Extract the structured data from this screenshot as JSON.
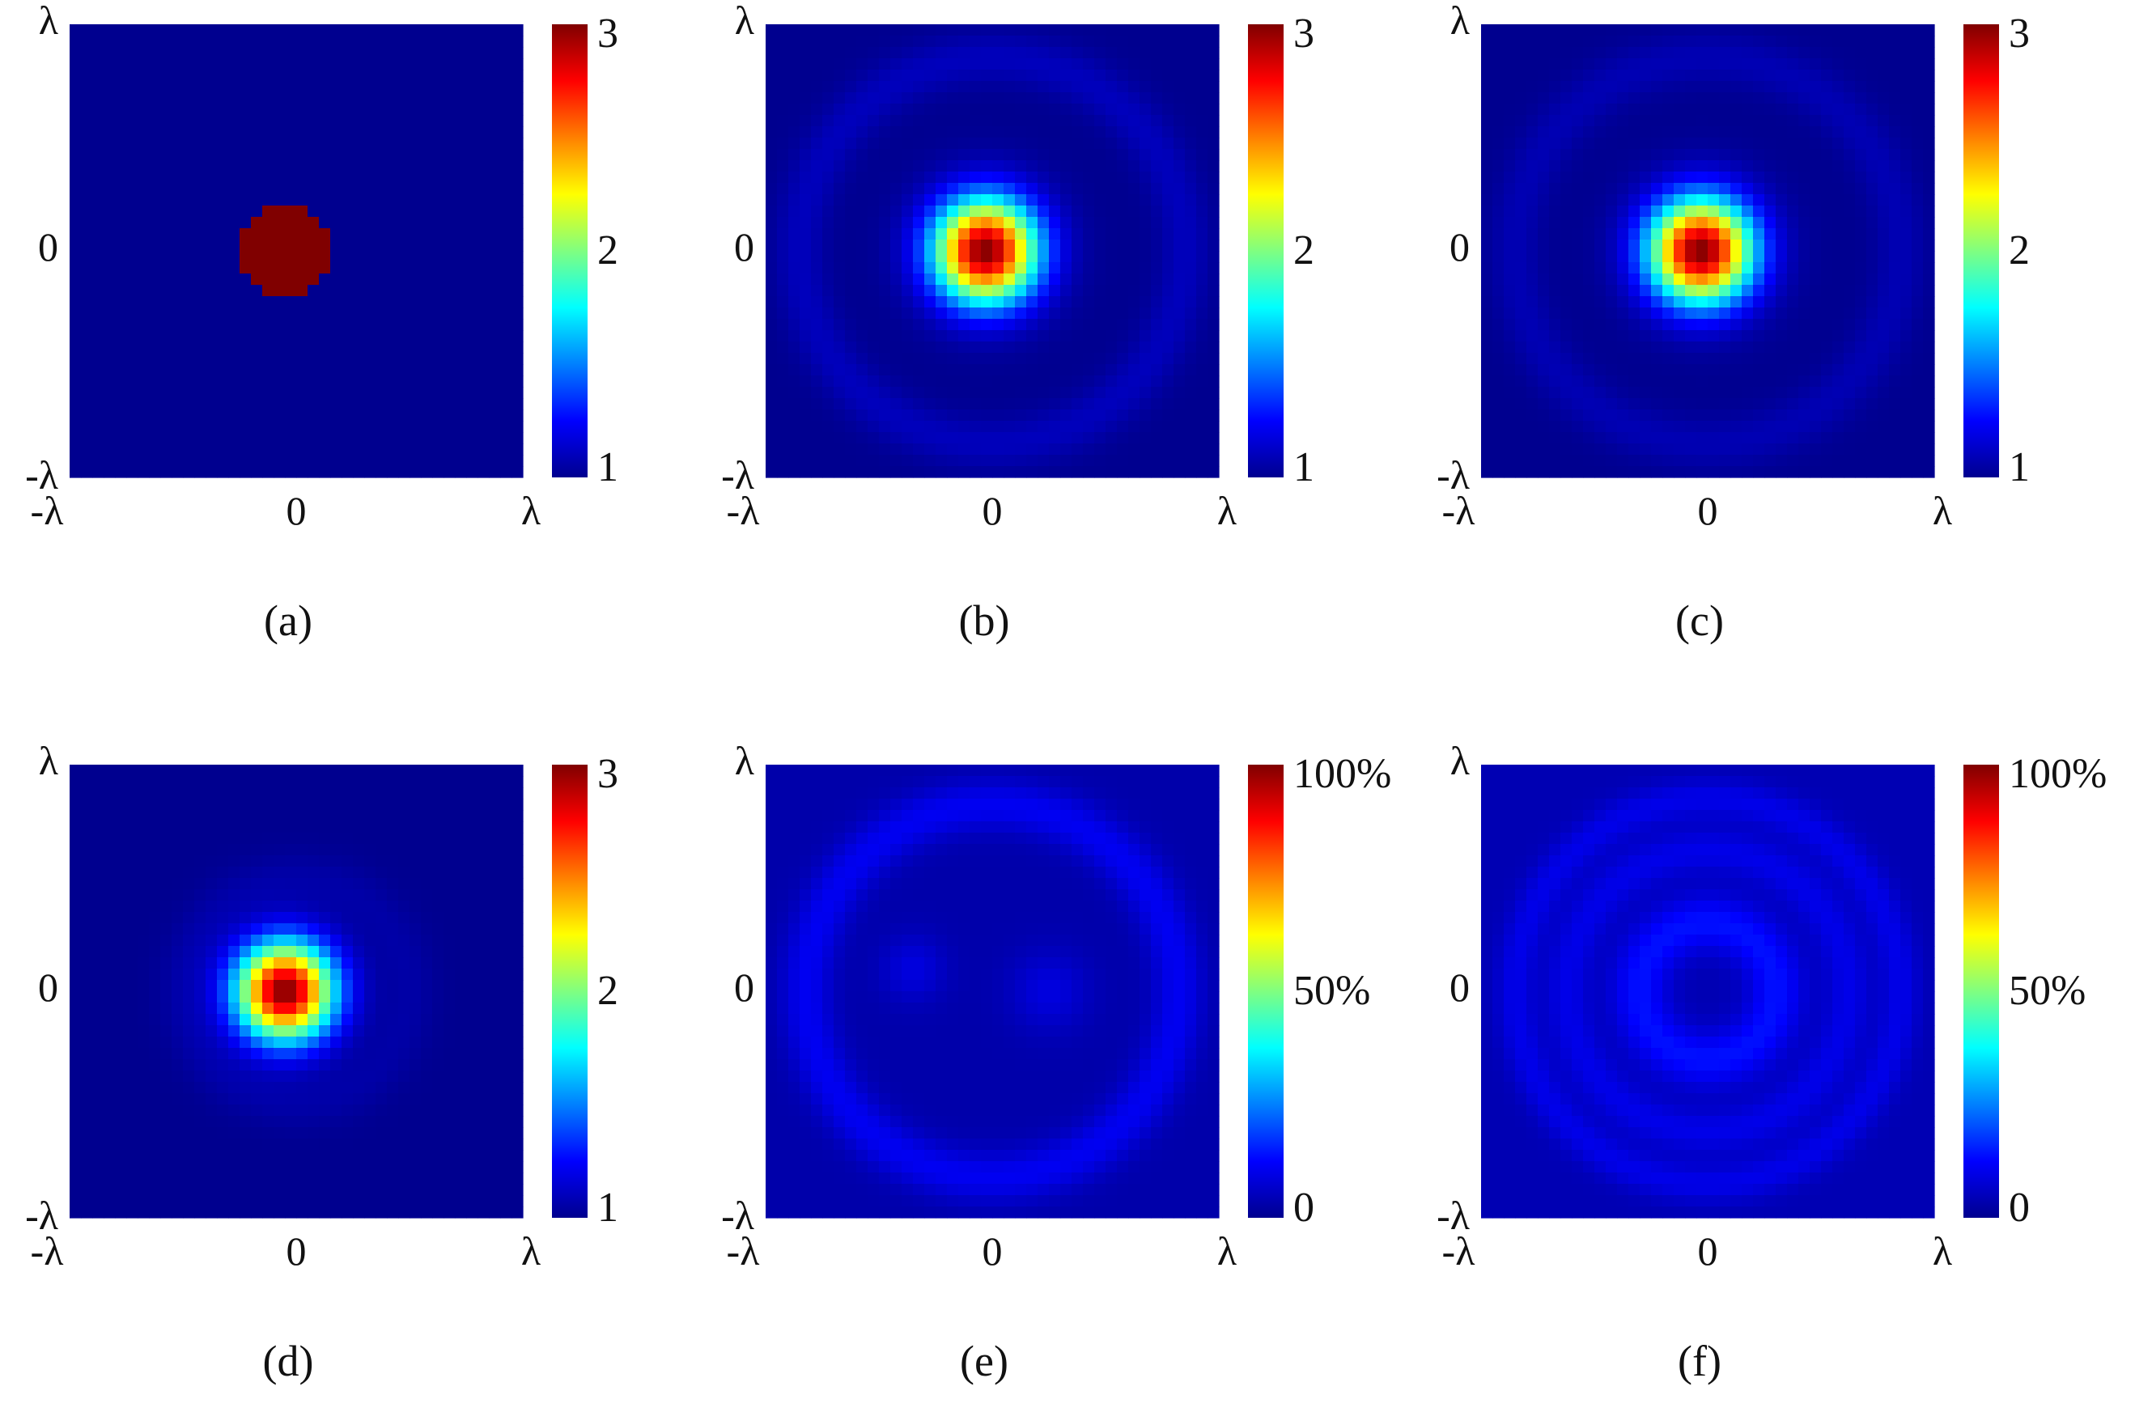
{
  "figure": {
    "colors": {
      "colormap": [
        "#00008f",
        "#0000ff",
        "#0080ff",
        "#00ffff",
        "#80ff80",
        "#ffff00",
        "#ff8000",
        "#ff0000",
        "#800000"
      ],
      "background": "#ffffff"
    }
  },
  "chart_data": [
    {
      "type": "heatmap",
      "caption": "(a)",
      "x_ticks": [
        "-λ",
        "0",
        "λ"
      ],
      "y_ticks": [
        "λ",
        "0",
        "-λ"
      ],
      "colorbar": {
        "min": 1,
        "max": 3,
        "ticks": [
          "1",
          "2",
          "3"
        ]
      },
      "field": {
        "background": 1.0,
        "features": [
          {
            "kind": "disk",
            "value": 3.0,
            "center": [
              -0.05,
              0.0
            ],
            "radius": 0.2
          }
        ]
      }
    },
    {
      "type": "heatmap",
      "caption": "(b)",
      "x_ticks": [
        "-λ",
        "0",
        "λ"
      ],
      "y_ticks": [
        "λ",
        "0",
        "-λ"
      ],
      "colorbar": {
        "min": 1,
        "max": 3,
        "ticks": [
          "1",
          "2",
          "3"
        ]
      },
      "field": {
        "background": 1.0,
        "features": [
          {
            "kind": "gaussian",
            "value": 2.0,
            "center": [
              -0.03,
              0.0
            ],
            "width": 0.16
          },
          {
            "kind": "ring",
            "value": 0.1,
            "center": [
              0.0,
              0.0
            ],
            "radius": 0.85,
            "width": 0.08
          }
        ]
      }
    },
    {
      "type": "heatmap",
      "caption": "(c)",
      "x_ticks": [
        "-λ",
        "0",
        "λ"
      ],
      "y_ticks": [
        "λ",
        "0",
        "-λ"
      ],
      "colorbar": {
        "min": 1,
        "max": 3,
        "ticks": [
          "1",
          "2",
          "3"
        ]
      },
      "field": {
        "background": 1.0,
        "features": [
          {
            "kind": "gaussian",
            "value": 2.0,
            "center": [
              -0.03,
              0.0
            ],
            "width": 0.16
          },
          {
            "kind": "ring",
            "value": 0.08,
            "center": [
              0.0,
              0.0
            ],
            "radius": 0.85,
            "width": 0.08
          }
        ]
      }
    },
    {
      "type": "heatmap",
      "caption": "(d)",
      "x_ticks": [
        "-λ",
        "0",
        "λ"
      ],
      "y_ticks": [
        "λ",
        "0",
        "-λ"
      ],
      "colorbar": {
        "min": 1,
        "max": 3,
        "ticks": [
          "1",
          "2",
          "3"
        ]
      },
      "field": {
        "background": 1.0,
        "features": [
          {
            "kind": "gaussian",
            "value": 2.0,
            "center": [
              -0.05,
              0.0
            ],
            "width": 0.15
          },
          {
            "kind": "ring",
            "value": 0.05,
            "center": [
              0.0,
              0.0
            ],
            "radius": 0.5,
            "width": 0.08
          }
        ]
      }
    },
    {
      "type": "heatmap",
      "caption": "(e)",
      "x_ticks": [
        "-λ",
        "0",
        "λ"
      ],
      "y_ticks": [
        "λ",
        "0",
        "-λ"
      ],
      "colorbar": {
        "min": 0,
        "max": 100,
        "ticks": [
          "0",
          "50%",
          "100%"
        ]
      },
      "field": {
        "background": 3.0,
        "features": [
          {
            "kind": "ring",
            "value": 8.0,
            "center": [
              0.0,
              0.0
            ],
            "radius": 0.82,
            "width": 0.08
          },
          {
            "kind": "gaussian",
            "value": 6.0,
            "center": [
              -0.35,
              0.1
            ],
            "width": 0.1
          },
          {
            "kind": "gaussian",
            "value": 6.0,
            "center": [
              0.25,
              0.0
            ],
            "width": 0.12
          }
        ]
      }
    },
    {
      "type": "heatmap",
      "caption": "(f)",
      "x_ticks": [
        "-λ",
        "0",
        "λ"
      ],
      "y_ticks": [
        "λ",
        "0",
        "-λ"
      ],
      "colorbar": {
        "min": 0,
        "max": 100,
        "ticks": [
          "0",
          "50%",
          "100%"
        ]
      },
      "field": {
        "background": 4.0,
        "features": [
          {
            "kind": "ring",
            "value": 10.0,
            "center": [
              0.0,
              0.0
            ],
            "radius": 0.3,
            "width": 0.09
          },
          {
            "kind": "ring",
            "value": 6.0,
            "center": [
              0.0,
              0.0
            ],
            "radius": 0.62,
            "width": 0.07
          },
          {
            "kind": "ring",
            "value": 6.0,
            "center": [
              0.0,
              0.0
            ],
            "radius": 0.85,
            "width": 0.06
          }
        ]
      }
    }
  ]
}
